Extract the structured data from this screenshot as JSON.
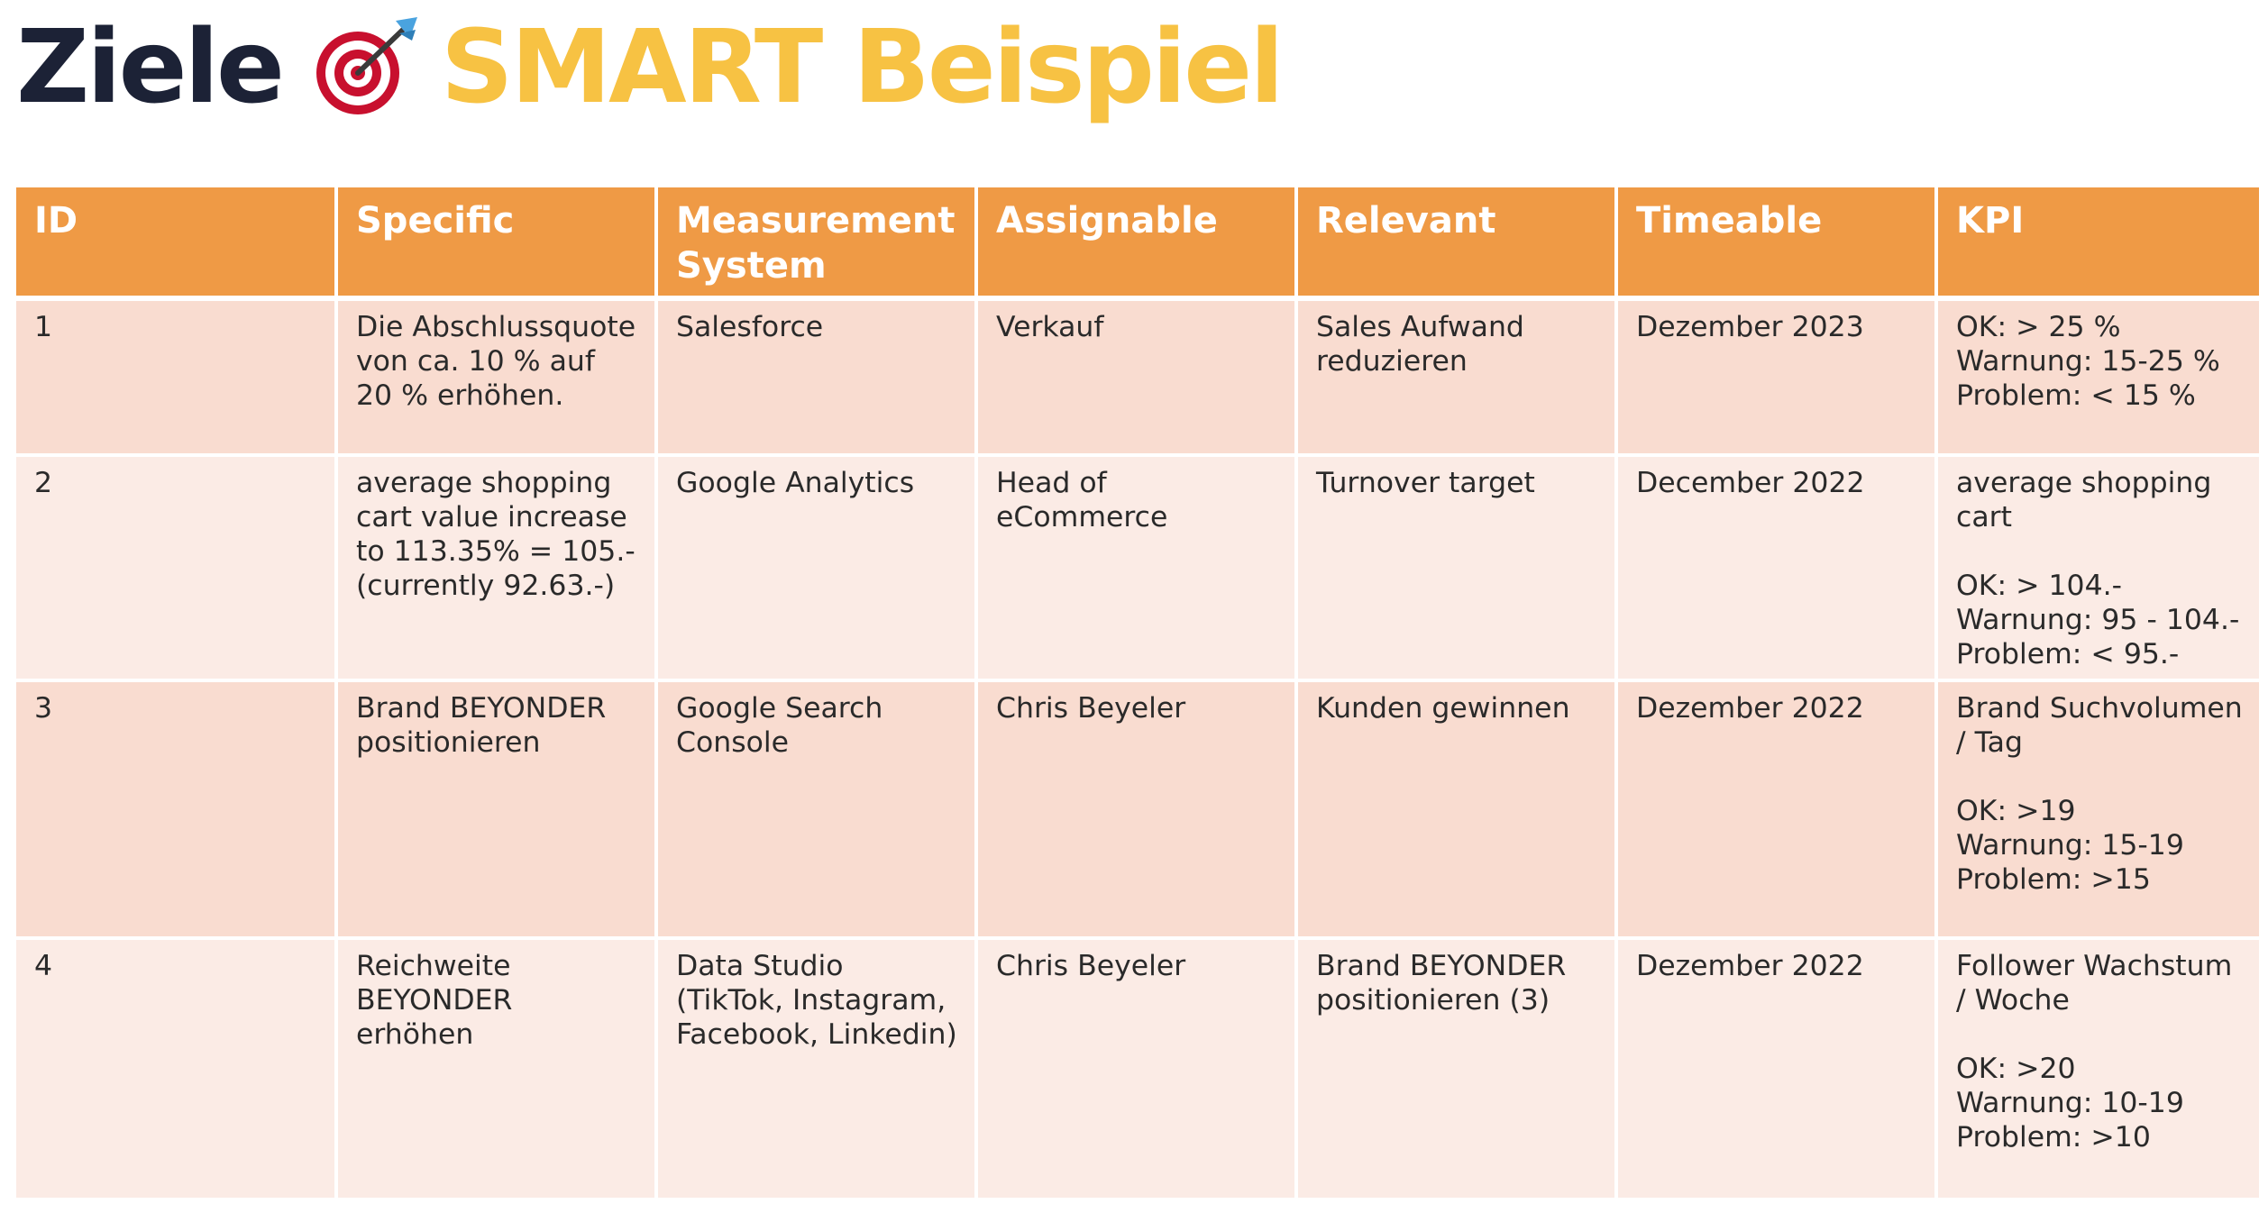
{
  "title": {
    "word1": "Ziele",
    "word2": "SMART Beispiel",
    "icon": "target-dart-icon",
    "colors": {
      "word1": "#1c2236",
      "word2": "#f7c243"
    }
  },
  "table": {
    "header_color": "#ef9a45",
    "row_colors": [
      "#f9dcd0",
      "#fbebe5"
    ],
    "columns": [
      "ID",
      "Specific",
      "Measurement System",
      "Assignable",
      "Relevant",
      "Timeable",
      "KPI"
    ],
    "rows": [
      {
        "id": "1",
        "specific": "Die Abschlussquote von ca. 10 % auf 20 % erhöhen.",
        "measurement": "Salesforce",
        "assignable": "Verkauf",
        "relevant": "Sales Aufwand reduzieren",
        "timeable": "Dezember 2023",
        "kpi": "OK: > 25 %\nWarnung: 15-25 %\nProblem: < 15 %"
      },
      {
        "id": "2",
        "specific": "average shopping cart value increase to 113.35% = 105.- (currently 92.63.-)",
        "measurement": "Google Analytics",
        "assignable": "Head of eCommerce",
        "relevant": "Turnover target",
        "timeable": "December 2022",
        "kpi": "average shopping cart\n\nOK: > 104.-\nWarnung: 95 - 104.-\nProblem: < 95.-"
      },
      {
        "id": "3",
        "specific": "Brand BEYONDER positionieren",
        "measurement": "Google Search Console",
        "assignable": "Chris Beyeler",
        "relevant": "Kunden gewinnen",
        "timeable": "Dezember 2022",
        "kpi": "Brand Suchvolumen / Tag\n\nOK: >19\nWarnung: 15-19\nProblem: >15"
      },
      {
        "id": "4",
        "specific": "Reichweite BEYONDER erhöhen",
        "measurement": "Data Studio (TikTok, Instagram, Facebook, Linkedin)",
        "assignable": "Chris Beyeler",
        "relevant": "Brand BEYONDER positionieren (3)",
        "timeable": "Dezember 2022",
        "kpi": "Follower Wachstum / Woche\n\nOK: >20\nWarnung: 10-19\nProblem: >10"
      }
    ]
  }
}
